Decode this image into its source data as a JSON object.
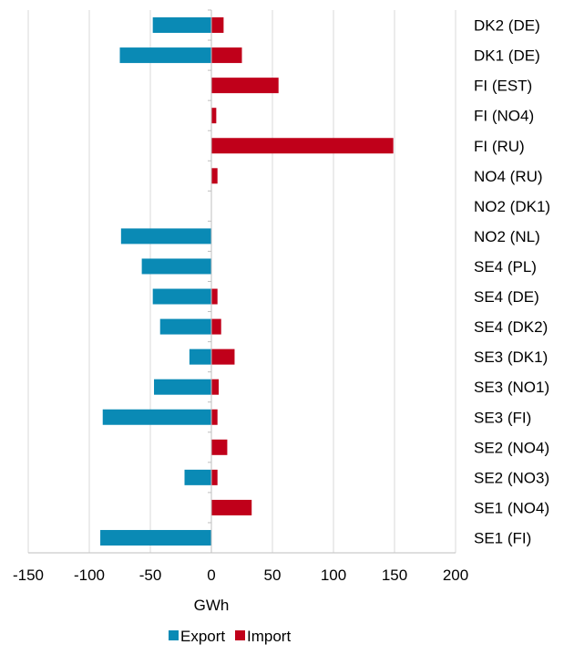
{
  "chart_data": {
    "type": "bar",
    "orientation": "horizontal",
    "title": "",
    "xlabel": "GWh",
    "ylabel": "",
    "xlim": [
      -150,
      200
    ],
    "xticks": [
      -150,
      -100,
      -50,
      0,
      50,
      100,
      150,
      200
    ],
    "xtick_labels": [
      "-150",
      "-100",
      "-50",
      "0",
      "50",
      "100",
      "150",
      "200"
    ],
    "grid": "vertical",
    "legend_position": "bottom",
    "categories": [
      "DK2 (DE)",
      "DK1 (DE)",
      "FI (EST)",
      "FI (NO4)",
      "FI (RU)",
      "NO4 (RU)",
      "NO2 (DK1)",
      "NO2 (NL)",
      "SE4 (PL)",
      "SE4 (DE)",
      "SE4 (DK2)",
      "SE3 (DK1)",
      "SE3 (NO1)",
      "SE3 (FI)",
      "SE2 (NO4)",
      "SE2 (NO3)",
      "SE1 (NO4)",
      "SE1 (FI)"
    ],
    "series": [
      {
        "name": "Export",
        "color": "#0a8ab5",
        "values": [
          -48,
          -75,
          0,
          0,
          0,
          0,
          0,
          -74,
          -57,
          -48,
          -42,
          -18,
          -47,
          -89,
          0,
          -22,
          0,
          -91
        ]
      },
      {
        "name": "Import",
        "color": "#c0001a",
        "values": [
          10,
          25,
          55,
          4,
          149,
          5,
          0,
          0,
          0,
          5,
          8,
          19,
          6,
          5,
          13,
          5,
          33,
          0
        ]
      }
    ]
  }
}
